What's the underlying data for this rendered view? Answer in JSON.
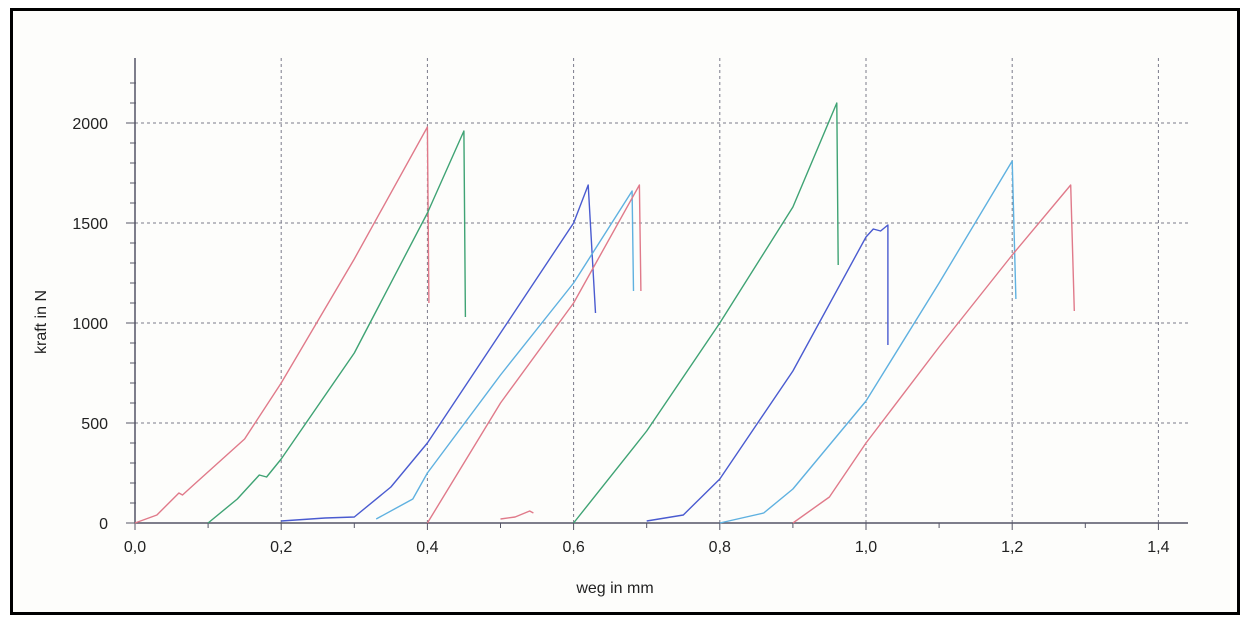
{
  "chart_data": {
    "type": "line",
    "title": "",
    "xlabel": "weg in mm",
    "ylabel": "kraft in N",
    "xlim": [
      0,
      1.44
    ],
    "ylim": [
      0,
      2200
    ],
    "grid": true,
    "x_ticks": [
      0,
      0.2,
      0.4,
      0.6,
      0.8,
      1.0,
      1.2,
      1.4
    ],
    "x_tick_labels": [
      "0,0",
      "0,2",
      "0,4",
      "0,6",
      "0,8",
      "1,0",
      "1,2",
      "1,4"
    ],
    "y_ticks": [
      0,
      500,
      1000,
      1500,
      2000
    ],
    "y_tick_labels": [
      "0",
      "500",
      "1000",
      "1500",
      "2000"
    ],
    "series": [
      {
        "color": "#e07a8a",
        "points": [
          [
            0.0,
            0
          ],
          [
            0.03,
            40
          ],
          [
            0.06,
            150
          ],
          [
            0.065,
            140
          ],
          [
            0.08,
            190
          ],
          [
            0.15,
            420
          ],
          [
            0.2,
            700
          ],
          [
            0.3,
            1320
          ],
          [
            0.4,
            1980
          ],
          [
            0.402,
            1100
          ]
        ]
      },
      {
        "color": "#3fa374",
        "points": [
          [
            0.1,
            0
          ],
          [
            0.14,
            120
          ],
          [
            0.17,
            240
          ],
          [
            0.18,
            230
          ],
          [
            0.2,
            320
          ],
          [
            0.3,
            850
          ],
          [
            0.4,
            1550
          ],
          [
            0.45,
            1960
          ],
          [
            0.452,
            1030
          ]
        ]
      },
      {
        "color": "#4a5bd0",
        "points": [
          [
            0.2,
            10
          ],
          [
            0.24,
            20
          ],
          [
            0.26,
            25
          ],
          [
            0.3,
            30
          ],
          [
            0.35,
            180
          ],
          [
            0.4,
            400
          ],
          [
            0.5,
            950
          ],
          [
            0.6,
            1500
          ],
          [
            0.62,
            1690
          ],
          [
            0.63,
            1050
          ]
        ]
      },
      {
        "color": "#5fb1e0",
        "points": [
          [
            0.33,
            20
          ],
          [
            0.38,
            120
          ],
          [
            0.4,
            250
          ],
          [
            0.5,
            740
          ],
          [
            0.6,
            1200
          ],
          [
            0.68,
            1660
          ],
          [
            0.682,
            1160
          ]
        ]
      },
      {
        "color": "#e07a8a",
        "points": [
          [
            0.4,
            0
          ],
          [
            0.5,
            600
          ],
          [
            0.6,
            1100
          ],
          [
            0.69,
            1690
          ],
          [
            0.692,
            1160
          ]
        ]
      },
      {
        "color": "#e07a8a",
        "points": [
          [
            0.5,
            20
          ],
          [
            0.52,
            30
          ],
          [
            0.54,
            60
          ],
          [
            0.545,
            50
          ]
        ]
      },
      {
        "color": "#3fa374",
        "points": [
          [
            0.6,
            0
          ],
          [
            0.7,
            460
          ],
          [
            0.8,
            1000
          ],
          [
            0.9,
            1580
          ],
          [
            0.96,
            2100
          ],
          [
            0.962,
            1290
          ]
        ]
      },
      {
        "color": "#4a5bd0",
        "points": [
          [
            0.7,
            10
          ],
          [
            0.75,
            40
          ],
          [
            0.8,
            220
          ],
          [
            0.9,
            760
          ],
          [
            1.0,
            1430
          ],
          [
            1.01,
            1470
          ],
          [
            1.02,
            1460
          ],
          [
            1.03,
            1490
          ],
          [
            1.03,
            890
          ]
        ]
      },
      {
        "color": "#5fb1e0",
        "points": [
          [
            0.8,
            0
          ],
          [
            0.86,
            50
          ],
          [
            0.9,
            170
          ],
          [
            1.0,
            610
          ],
          [
            1.1,
            1200
          ],
          [
            1.2,
            1810
          ],
          [
            1.205,
            1120
          ]
        ]
      },
      {
        "color": "#e07a8a",
        "points": [
          [
            0.9,
            0
          ],
          [
            0.95,
            130
          ],
          [
            1.0,
            400
          ],
          [
            1.1,
            880
          ],
          [
            1.2,
            1340
          ],
          [
            1.28,
            1690
          ],
          [
            1.285,
            1060
          ]
        ]
      }
    ]
  }
}
